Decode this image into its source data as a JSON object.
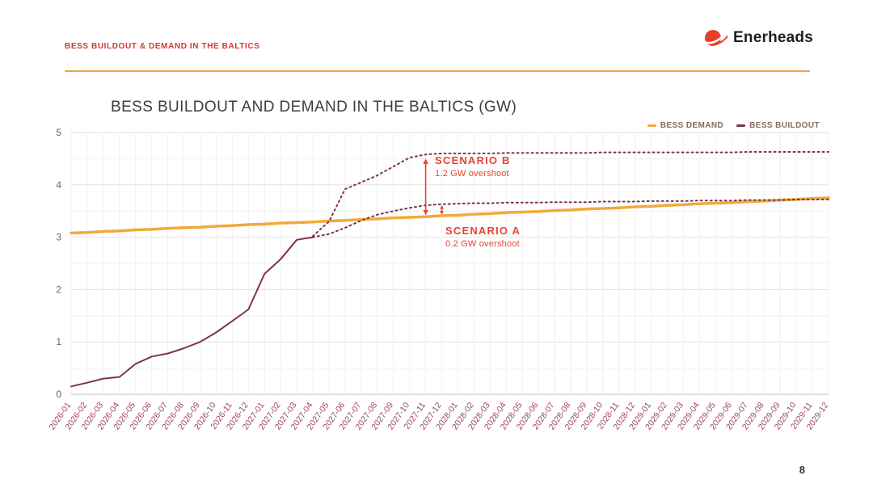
{
  "header": {
    "kicker": "BESS BUILDOUT & DEMAND IN THE BALTICS",
    "logo_text": "Enerheads"
  },
  "footer": {
    "page_number": "8"
  },
  "annotations": {
    "color": "#E8442E",
    "scenario_b": {
      "title": "SCENARIO B",
      "subtitle": "1.2 GW overshoot"
    },
    "scenario_a": {
      "title": "SCENARIO A",
      "subtitle": "0.2 GW overshoot"
    }
  },
  "chart_data": {
    "type": "line",
    "title": "BESS BUILDOUT AND DEMAND IN THE BALTICS (GW)",
    "ylim": [
      0,
      5
    ],
    "yticks": [
      0,
      1,
      2,
      3,
      4,
      5
    ],
    "grid": true,
    "axis_label_color": "#9d4a5f",
    "ytick_color": "#666666",
    "legend_position": "top-right",
    "legend": [
      {
        "label": "BESS DEMAND",
        "color": "#F2A93B"
      },
      {
        "label": "BESS BUILDOUT",
        "color": "#7C3448"
      }
    ],
    "categories": [
      "2026-01",
      "2026-02",
      "2026-03",
      "2026-04",
      "2026-05",
      "2026-06",
      "2026-07",
      "2026-08",
      "2026-09",
      "2026-10",
      "2026-11",
      "2026-12",
      "2027-01",
      "2027-02",
      "2027-03",
      "2027-04",
      "2027-05",
      "2027-06",
      "2027-07",
      "2027-08",
      "2027-09",
      "2027-10",
      "2027-11",
      "2027-12",
      "2028-01",
      "2028-02",
      "2028-03",
      "2028-04",
      "2028-05",
      "2028-06",
      "2028-07",
      "2028-08",
      "2028-09",
      "2028-10",
      "2028-11",
      "2028-12",
      "2029-01",
      "2029-02",
      "2029-03",
      "2029-04",
      "2029-05",
      "2029-06",
      "2029-07",
      "2029-08",
      "2029-09",
      "2029-10",
      "2029-11",
      "2029-12"
    ],
    "series": [
      {
        "name": "BESS DEMAND",
        "color": "#F2A93B",
        "width": 3.5,
        "dash": null,
        "values": [
          3.08,
          3.09,
          3.11,
          3.12,
          3.14,
          3.15,
          3.17,
          3.18,
          3.19,
          3.21,
          3.22,
          3.24,
          3.25,
          3.27,
          3.28,
          3.29,
          3.31,
          3.32,
          3.34,
          3.35,
          3.37,
          3.38,
          3.39,
          3.41,
          3.42,
          3.44,
          3.45,
          3.47,
          3.48,
          3.49,
          3.51,
          3.52,
          3.54,
          3.55,
          3.56,
          3.58,
          3.59,
          3.61,
          3.62,
          3.64,
          3.65,
          3.66,
          3.68,
          3.69,
          3.71,
          3.72,
          3.74,
          3.75
        ]
      },
      {
        "name": "BESS BUILDOUT (actual)",
        "color": "#7C3448",
        "width": 2,
        "dash": null,
        "values": [
          0.15,
          0.22,
          0.3,
          0.33,
          0.58,
          0.72,
          0.78,
          0.88,
          1.0,
          1.18,
          1.4,
          1.62,
          2.3,
          2.58,
          2.95,
          3.0,
          null,
          null,
          null,
          null,
          null,
          null,
          null,
          null,
          null,
          null,
          null,
          null,
          null,
          null,
          null,
          null,
          null,
          null,
          null,
          null,
          null,
          null,
          null,
          null,
          null,
          null,
          null,
          null,
          null,
          null,
          null,
          null
        ]
      },
      {
        "name": "BESS BUILDOUT - Scenario A",
        "color": "#7C3448",
        "width": 2,
        "dash": "2 4",
        "values": [
          null,
          null,
          null,
          null,
          null,
          null,
          null,
          null,
          null,
          null,
          null,
          null,
          null,
          null,
          null,
          3.0,
          3.06,
          3.18,
          3.32,
          3.43,
          3.5,
          3.56,
          3.61,
          3.63,
          3.64,
          3.65,
          3.65,
          3.66,
          3.66,
          3.66,
          3.67,
          3.67,
          3.67,
          3.68,
          3.68,
          3.68,
          3.69,
          3.69,
          3.69,
          3.7,
          3.7,
          3.7,
          3.71,
          3.71,
          3.71,
          3.72,
          3.72,
          3.72
        ]
      },
      {
        "name": "BESS BUILDOUT - Scenario B",
        "color": "#7C3448",
        "width": 2,
        "dash": "2 4",
        "values": [
          null,
          null,
          null,
          null,
          null,
          null,
          null,
          null,
          null,
          null,
          null,
          null,
          null,
          null,
          null,
          3.02,
          3.3,
          3.92,
          4.05,
          4.18,
          4.35,
          4.52,
          4.58,
          4.6,
          4.6,
          4.6,
          4.6,
          4.61,
          4.61,
          4.61,
          4.61,
          4.61,
          4.61,
          4.62,
          4.62,
          4.62,
          4.62,
          4.62,
          4.62,
          4.62,
          4.62,
          4.62,
          4.63,
          4.63,
          4.63,
          4.63,
          4.63,
          4.63
        ]
      }
    ],
    "arrows": [
      {
        "x_index": 22,
        "from_value": 3.42,
        "to_value": 4.5,
        "color": "#E8442E"
      },
      {
        "x_index": 23,
        "from_value": 3.43,
        "to_value": 3.61,
        "color": "#E8442E"
      }
    ]
  }
}
